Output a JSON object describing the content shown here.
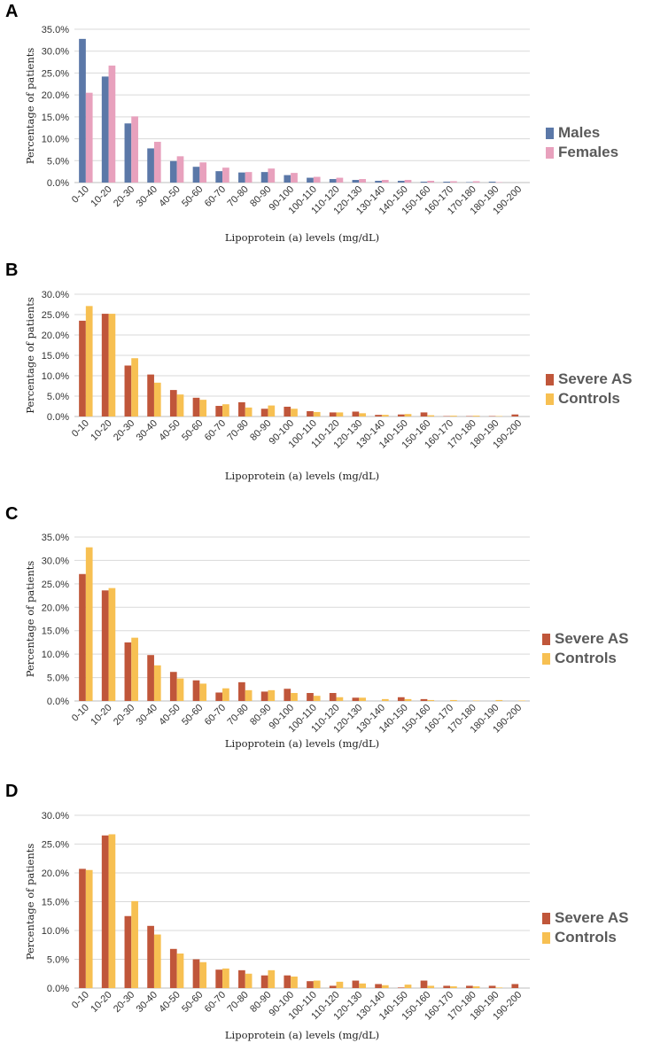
{
  "chart_data": [
    {
      "panel": "A",
      "type": "bar",
      "ylabel": "Percentage of patients",
      "xlabel": "Lipoprotein (a) levels (mg/dL)",
      "ylim": [
        0,
        35
      ],
      "yticks": [
        "0.0%",
        "5.0%",
        "10.0%",
        "15.0%",
        "20.0%",
        "25.0%",
        "30.0%",
        "35.0%"
      ],
      "categories": [
        "0-10",
        "10-20",
        "20-30",
        "30-40",
        "40-50",
        "50-60",
        "60-70",
        "70-80",
        "80-90",
        "90-100",
        "100-110",
        "110-120",
        "120-130",
        "130-140",
        "140-150",
        "150-160",
        "160-170",
        "170-180",
        "180-190",
        "190-200"
      ],
      "series": [
        {
          "name": "Males",
          "color": "#5b78a8",
          "values": [
            32.8,
            24.2,
            13.5,
            7.8,
            4.9,
            3.6,
            2.6,
            2.3,
            2.4,
            1.7,
            1.1,
            0.8,
            0.6,
            0.4,
            0.4,
            0.2,
            0.2,
            0.1,
            0.2,
            0.0
          ]
        },
        {
          "name": "Females",
          "color": "#e8a1bd",
          "values": [
            20.5,
            26.7,
            15.1,
            9.3,
            6.0,
            4.6,
            3.4,
            2.4,
            3.2,
            2.2,
            1.3,
            1.1,
            0.8,
            0.6,
            0.6,
            0.4,
            0.3,
            0.3,
            0.1,
            0.0
          ]
        }
      ]
    },
    {
      "panel": "B",
      "type": "bar",
      "ylabel": "Percentage of patients",
      "xlabel": "Lipoprotein (a) levels (mg/dL)",
      "ylim": [
        0,
        30
      ],
      "yticks": [
        "0.0%",
        "5.0%",
        "10.0%",
        "15.0%",
        "20.0%",
        "25.0%",
        "30.0%"
      ],
      "categories": [
        "0-10",
        "10-20",
        "20-30",
        "30-40",
        "40-50",
        "50-60",
        "60-70",
        "70-80",
        "80-90",
        "90-100",
        "100-110",
        "110-120",
        "120-130",
        "130-140",
        "140-150",
        "150-160",
        "160-170",
        "170-180",
        "180-190",
        "190-200"
      ],
      "series": [
        {
          "name": "Severe AS",
          "color": "#c0563a",
          "values": [
            23.5,
            25.2,
            12.5,
            10.3,
            6.5,
            4.6,
            2.6,
            3.5,
            1.9,
            2.4,
            1.3,
            1.0,
            1.2,
            0.4,
            0.5,
            1.0,
            0.1,
            0.1,
            0.1,
            0.5
          ]
        },
        {
          "name": "Controls",
          "color": "#f7c052",
          "values": [
            27.1,
            25.2,
            14.3,
            8.3,
            5.4,
            4.1,
            3.0,
            2.2,
            2.7,
            1.9,
            1.1,
            1.0,
            0.8,
            0.4,
            0.6,
            0.3,
            0.2,
            0.2,
            0.1,
            0.0
          ]
        }
      ]
    },
    {
      "panel": "C",
      "type": "bar",
      "ylabel": "Percentage of patients",
      "xlabel": "Lipoprotein (a) levels (mg/dL)",
      "ylim": [
        0,
        35
      ],
      "yticks": [
        "0.0%",
        "5.0%",
        "10.0%",
        "15.0%",
        "20.0%",
        "25.0%",
        "30.0%",
        "35.0%"
      ],
      "categories": [
        "0-10",
        "10-20",
        "20-30",
        "30-40",
        "40-50",
        "50-60",
        "60-70",
        "70-80",
        "80-90",
        "90-100",
        "100-110",
        "110-120",
        "120-130",
        "130-140",
        "140-150",
        "150-160",
        "160-170",
        "170-180",
        "180-190",
        "190-200"
      ],
      "series": [
        {
          "name": "Severe AS",
          "color": "#c0563a",
          "values": [
            27.1,
            23.6,
            12.5,
            9.8,
            6.2,
            4.4,
            1.8,
            4.0,
            2.0,
            2.6,
            1.7,
            1.7,
            0.7,
            0.0,
            0.8,
            0.4,
            0.0,
            0.0,
            0.0,
            0.0
          ]
        },
        {
          "name": "Controls",
          "color": "#f7c052",
          "values": [
            32.8,
            24.1,
            13.5,
            7.6,
            4.8,
            3.7,
            2.7,
            2.3,
            2.3,
            1.7,
            1.1,
            0.8,
            0.7,
            0.4,
            0.4,
            0.2,
            0.2,
            0.1,
            0.2,
            0.1
          ]
        }
      ]
    },
    {
      "panel": "D",
      "type": "bar",
      "ylabel": "Percentage of patients",
      "xlabel": "Lipoprotein (a) levels (mg/dL)",
      "ylim": [
        0,
        30
      ],
      "yticks": [
        "0.0%",
        "5.0%",
        "10.0%",
        "15.0%",
        "20.0%",
        "25.0%",
        "30.0%"
      ],
      "categories": [
        "0-10",
        "10-20",
        "20-30",
        "30-40",
        "40-50",
        "50-60",
        "60-70",
        "70-80",
        "80-90",
        "90-100",
        "100-110",
        "110-120",
        "120-130",
        "130-140",
        "140-150",
        "150-160",
        "160-170",
        "170-180",
        "180-190",
        "190-200"
      ],
      "series": [
        {
          "name": "Severe AS",
          "color": "#c0563a",
          "values": [
            20.7,
            26.5,
            12.5,
            10.8,
            6.8,
            5.0,
            3.2,
            3.1,
            2.2,
            2.2,
            1.2,
            0.4,
            1.3,
            0.7,
            0.1,
            1.3,
            0.4,
            0.4,
            0.4,
            0.7
          ]
        },
        {
          "name": "Controls",
          "color": "#f7c052",
          "values": [
            20.5,
            26.7,
            15.1,
            9.3,
            6.0,
            4.5,
            3.4,
            2.5,
            3.1,
            2.0,
            1.3,
            1.1,
            0.8,
            0.5,
            0.6,
            0.4,
            0.3,
            0.3,
            0.1,
            0.0
          ]
        }
      ]
    }
  ]
}
